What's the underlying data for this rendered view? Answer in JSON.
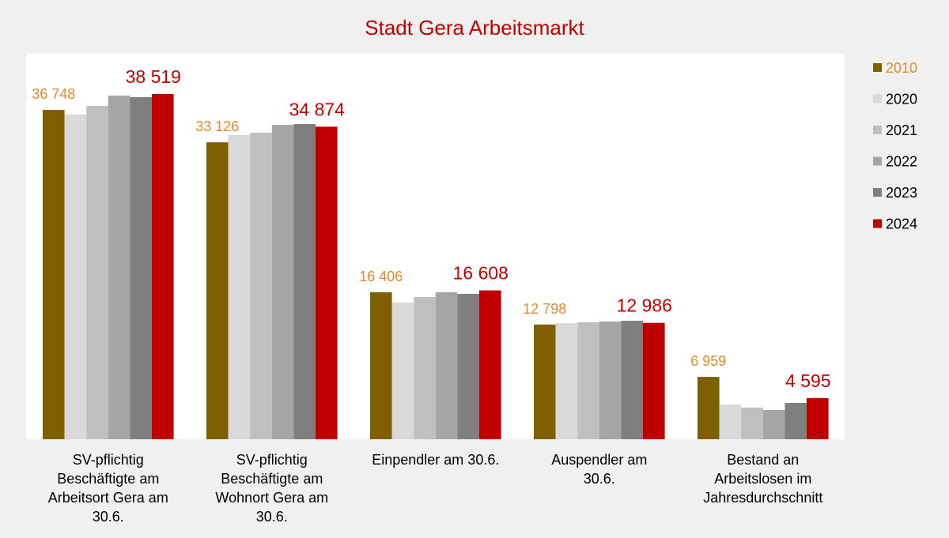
{
  "chart_data": {
    "type": "bar",
    "title": "Stadt Gera Arbeitsmarkt",
    "title_color": "#c00000",
    "categories": [
      [
        "SV-pflichtig",
        "Beschäftigte am",
        "Arbeitsort Gera am",
        "30.6."
      ],
      [
        "SV-pflichtig",
        "Beschäftigte am",
        "Wohnort Gera am",
        "30.6."
      ],
      [
        "Einpendler am 30.6."
      ],
      [
        "Auspendler am",
        "30.6."
      ],
      [
        "Bestand an",
        "Arbeitslosen im",
        "Jahresdurchschnitt"
      ]
    ],
    "series": [
      {
        "name": "2010",
        "color": "#7f6000",
        "values": [
          36748,
          33126,
          16406,
          12798,
          6959
        ],
        "labels": [
          "36 748",
          "33 126",
          "16 406",
          "12 798",
          "6 959"
        ],
        "label_color": "#e08a2c"
      },
      {
        "name": "2020",
        "color": "#d9d9d9",
        "values": [
          36230,
          33940,
          15250,
          12960,
          3880
        ]
      },
      {
        "name": "2021",
        "color": "#bfbfbf",
        "values": [
          37200,
          34200,
          15870,
          13050,
          3530
        ]
      },
      {
        "name": "2022",
        "color": "#a5a5a5",
        "values": [
          38345,
          35080,
          16400,
          13130,
          3260
        ]
      },
      {
        "name": "2023",
        "color": "#7f7f7f",
        "values": [
          38170,
          35170,
          16220,
          13220,
          4055
        ]
      },
      {
        "name": "2024",
        "color": "#c00000",
        "values": [
          38519,
          34874,
          16608,
          12986,
          4595
        ],
        "labels": [
          "38 519",
          "34 874",
          "16 608",
          "12 986",
          "4 595"
        ],
        "label_color": "#c00000"
      }
    ],
    "legend_label_colors": [
      "#e08a2c",
      "#000000",
      "#000000",
      "#000000",
      "#000000",
      "#000000"
    ],
    "ylim": [
      0,
      43000
    ],
    "grid": false,
    "legend_position": "right"
  }
}
